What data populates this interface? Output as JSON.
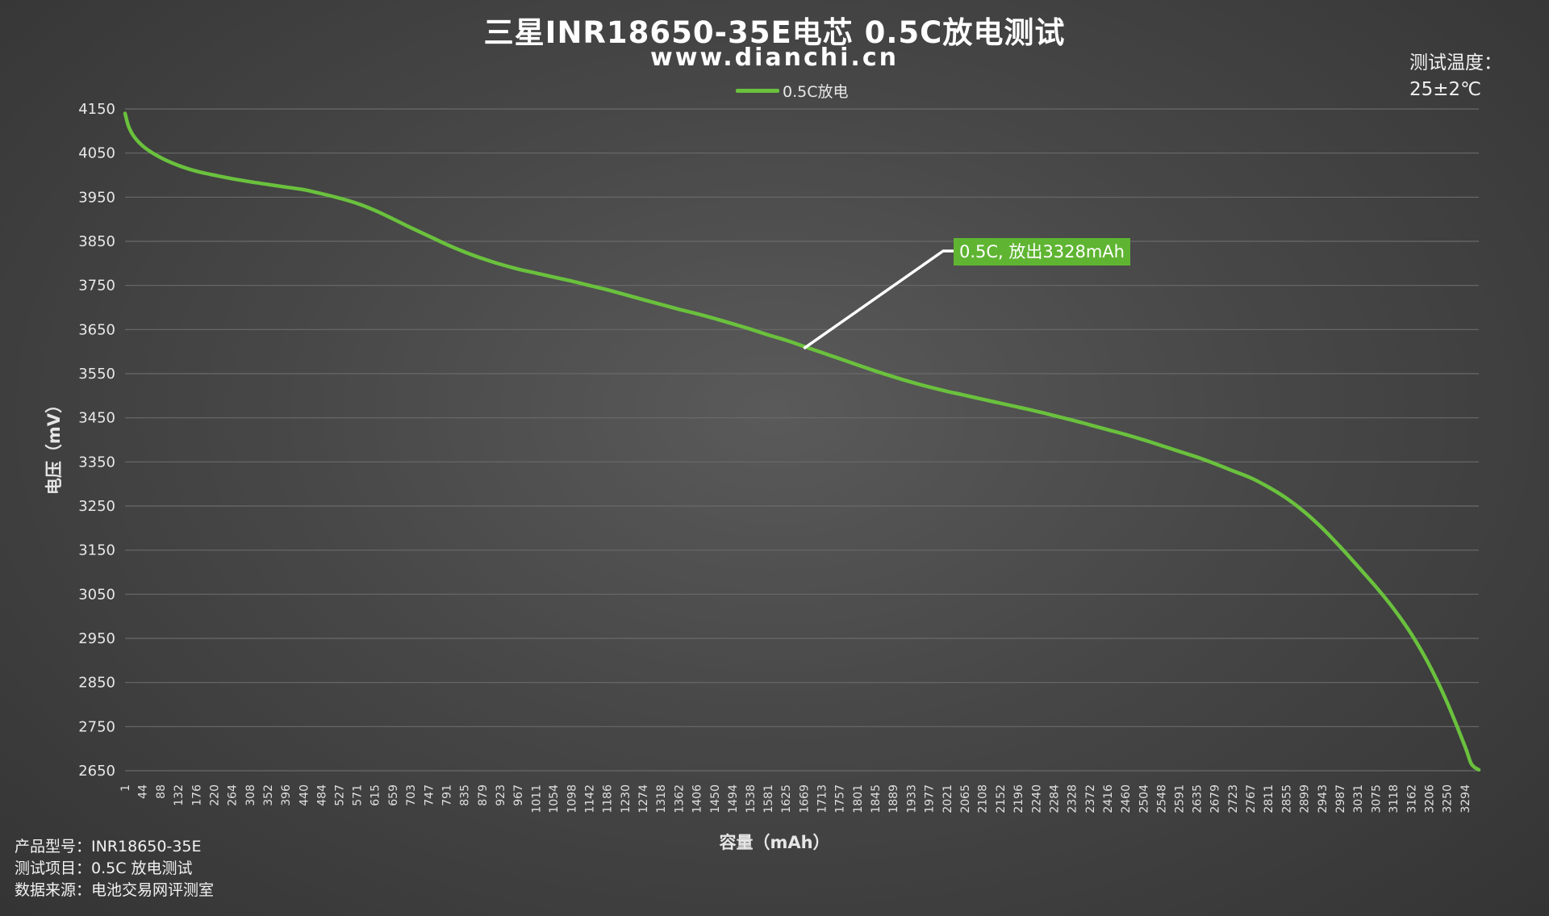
{
  "header": {
    "title": "三星INR18650-35E电芯 0.5C放电测试",
    "subtitle": "www.dianchi.cn"
  },
  "temperature": {
    "label": "测试温度：",
    "value": "25±2℃"
  },
  "footer": {
    "line1": "产品型号：INR18650-35E",
    "line2": "测试项目：0.5C 放电测试",
    "line3": "数据来源：电池交易网评测室"
  },
  "colors": {
    "series": "#6ac13d",
    "callout_bg": "#5fb532",
    "grid": "#6a6a6a"
  },
  "chart_data": {
    "type": "line",
    "xlabel": "容量（mAh）",
    "ylabel": "电压（mV）",
    "ylim": [
      2650,
      4150
    ],
    "yticks": [
      4150,
      4050,
      3950,
      3850,
      3750,
      3650,
      3550,
      3450,
      3350,
      3250,
      3150,
      3050,
      2950,
      2850,
      2750,
      2650
    ],
    "xlim": [
      1,
      3328
    ],
    "xticks": [
      1,
      44,
      88,
      132,
      176,
      220,
      264,
      308,
      352,
      396,
      440,
      484,
      527,
      571,
      615,
      659,
      703,
      747,
      791,
      835,
      879,
      923,
      967,
      1011,
      1054,
      1098,
      1142,
      1186,
      1230,
      1274,
      1318,
      1362,
      1406,
      1450,
      1494,
      1538,
      1581,
      1625,
      1669,
      1713,
      1757,
      1801,
      1845,
      1889,
      1933,
      1977,
      2021,
      2065,
      2108,
      2152,
      2196,
      2240,
      2284,
      2328,
      2372,
      2416,
      2460,
      2504,
      2548,
      2591,
      2635,
      2679,
      2723,
      2767,
      2811,
      2855,
      2899,
      2943,
      2987,
      3031,
      3075,
      3118,
      3162,
      3206,
      3250,
      3294
    ],
    "grid": "horizontal",
    "legend_position": "top-center",
    "series": [
      {
        "name": "0.5C放电",
        "x": [
          1,
          10,
          25,
          50,
          88,
          132,
          176,
          220,
          264,
          308,
          352,
          396,
          440,
          484,
          527,
          571,
          615,
          659,
          703,
          747,
          791,
          835,
          879,
          923,
          967,
          1011,
          1054,
          1098,
          1142,
          1186,
          1230,
          1274,
          1318,
          1362,
          1406,
          1450,
          1494,
          1538,
          1581,
          1625,
          1669,
          1713,
          1757,
          1801,
          1845,
          1889,
          1933,
          1977,
          2021,
          2065,
          2108,
          2152,
          2196,
          2240,
          2284,
          2328,
          2372,
          2416,
          2460,
          2504,
          2548,
          2591,
          2635,
          2679,
          2723,
          2767,
          2811,
          2855,
          2899,
          2943,
          2987,
          3031,
          3075,
          3118,
          3162,
          3206,
          3250,
          3294,
          3310,
          3328
        ],
        "y": [
          4140,
          4110,
          4085,
          4062,
          4040,
          4022,
          4009,
          4000,
          3992,
          3985,
          3979,
          3973,
          3967,
          3958,
          3948,
          3936,
          3920,
          3901,
          3881,
          3862,
          3843,
          3826,
          3811,
          3798,
          3787,
          3778,
          3769,
          3760,
          3750,
          3740,
          3729,
          3718,
          3707,
          3696,
          3686,
          3675,
          3663,
          3651,
          3638,
          3626,
          3612,
          3598,
          3584,
          3570,
          3556,
          3543,
          3531,
          3520,
          3510,
          3501,
          3492,
          3483,
          3474,
          3465,
          3455,
          3445,
          3434,
          3423,
          3412,
          3400,
          3387,
          3374,
          3361,
          3346,
          3330,
          3314,
          3293,
          3268,
          3237,
          3200,
          3158,
          3113,
          3067,
          3018,
          2960,
          2890,
          2805,
          2705,
          2665,
          2652
        ]
      }
    ],
    "annotation": {
      "text": "0.5C, 放出3328mAh",
      "x": 1669,
      "y": 3607
    }
  }
}
